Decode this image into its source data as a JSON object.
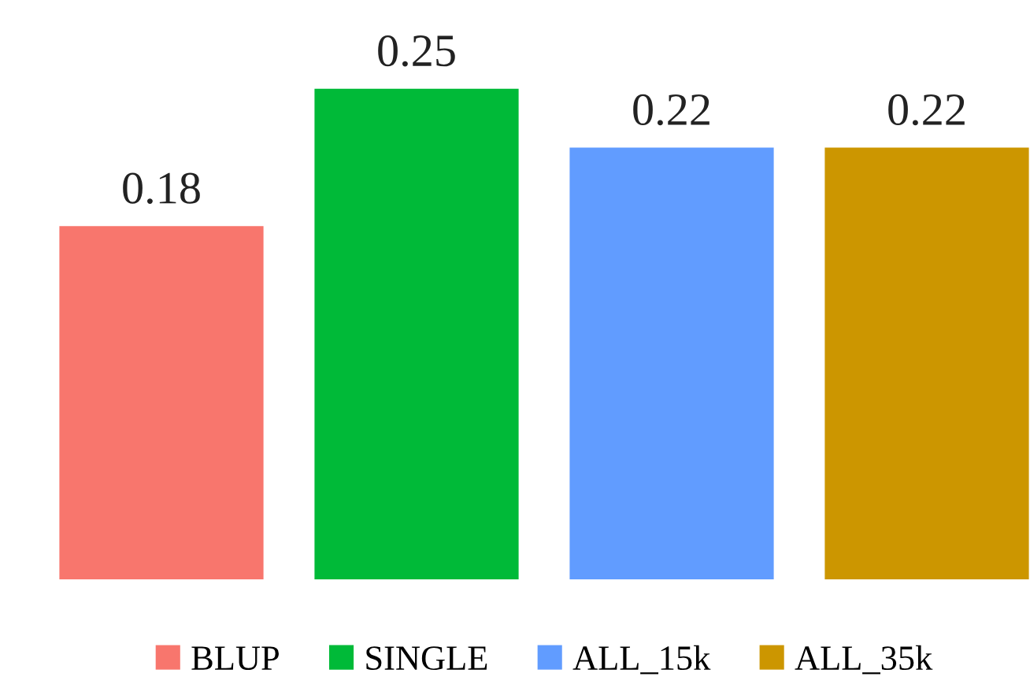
{
  "chart_data": {
    "type": "bar",
    "categories": [
      null
    ],
    "series": [
      {
        "name": "BLUP",
        "color": "#f8766d",
        "values": [
          0.18
        ]
      },
      {
        "name": "SINGLE",
        "color": "#00ba38",
        "values": [
          0.25
        ]
      },
      {
        "name": "ALL_15k",
        "color": "#619cff",
        "values": [
          0.22
        ]
      },
      {
        "name": "ALL_35k",
        "color": "#cc9600",
        "values": [
          0.22
        ]
      }
    ],
    "data_labels": true,
    "legend": "bottom",
    "grid": false
  }
}
